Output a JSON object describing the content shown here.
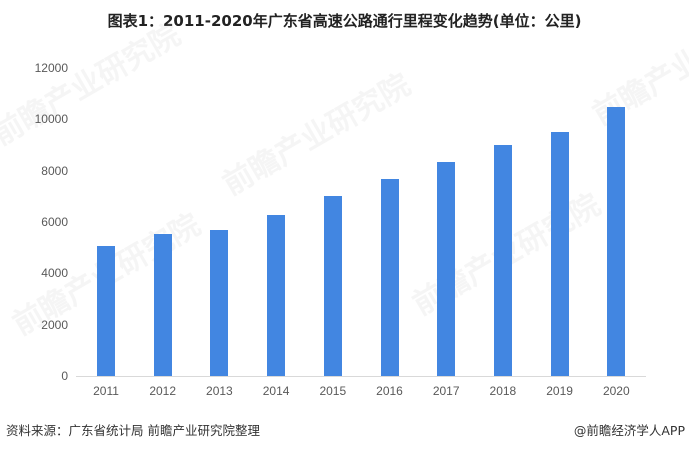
{
  "title": "图表1：2011-2020年广东省高速公路通行里程变化趋势(单位：公里)",
  "watermark": "前瞻产业研究院",
  "footer": {
    "source": "资料来源：广东省统计局 前瞻产业研究院整理",
    "credit": "@前瞻经济学人APP"
  },
  "colors": {
    "bar": "#4286E1",
    "axis": "#D9D9D9",
    "tick_text": "#595959"
  },
  "chart_data": {
    "type": "bar",
    "title": "图表1：2011-2020年广东省高速公路通行里程变化趋势(单位：公里)",
    "xlabel": "",
    "ylabel": "公里",
    "categories": [
      "2011",
      "2012",
      "2013",
      "2014",
      "2015",
      "2016",
      "2017",
      "2018",
      "2019",
      "2020"
    ],
    "values": [
      5050,
      5520,
      5700,
      6270,
      7020,
      7670,
      8340,
      9000,
      9500,
      10490
    ],
    "ylim": [
      0,
      12000
    ],
    "yticks": [
      "0",
      "2000",
      "4000",
      "6000",
      "8000",
      "10000",
      "12000"
    ],
    "grid": false,
    "legend": null
  }
}
